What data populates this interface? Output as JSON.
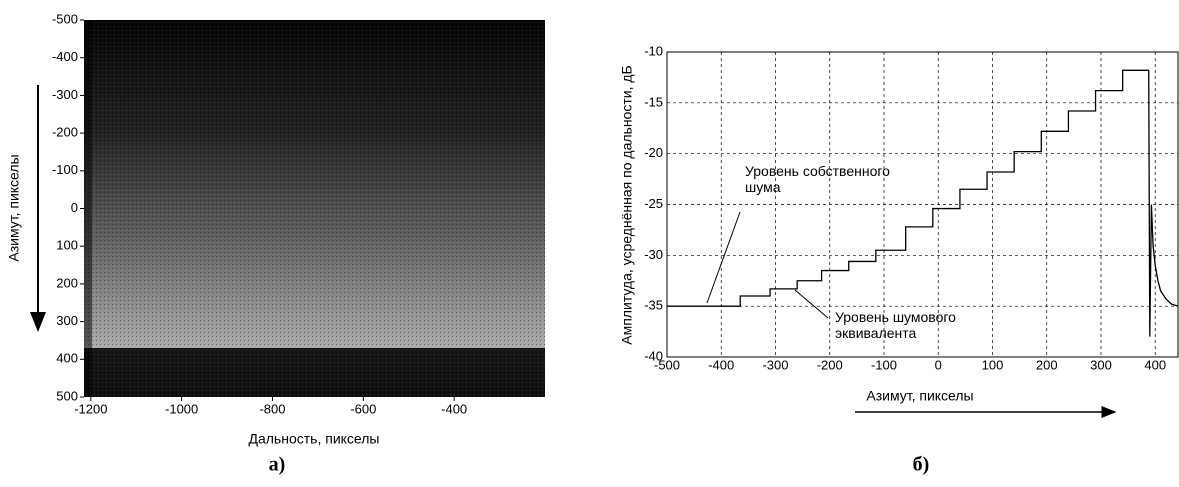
{
  "chart_data": [
    {
      "type": "heatmap",
      "xlabel": "Дальность, пикселы",
      "ylabel": "Азимут, пикселы",
      "caption": "а)",
      "xlim": [
        -1215,
        -200
      ],
      "ylim": [
        -500,
        500
      ],
      "y_inverted": true,
      "xticks": [
        -1200,
        -1000,
        -800,
        -600,
        -400
      ],
      "yticks": [
        -500,
        -400,
        -300,
        -200,
        -100,
        0,
        100,
        200,
        300,
        400,
        500
      ]
    },
    {
      "type": "line",
      "xlabel": "Азимут, пикселы",
      "ylabel": "Амплитуда, усреднённая по дальности, дБ",
      "caption": "б)",
      "xlim": [
        -500,
        442
      ],
      "ylim": [
        -40,
        -10
      ],
      "xticks": [
        -500,
        -400,
        -300,
        -200,
        -100,
        0,
        100,
        200,
        300,
        400
      ],
      "yticks": [
        -40,
        -35,
        -30,
        -25,
        -20,
        -15,
        -10
      ],
      "grid": true,
      "color": "#000000",
      "annotations": [
        "Уровень собственного шума",
        "Уровень шумового эквивалента"
      ],
      "x": [
        -500,
        -365,
        -365,
        -310,
        -310,
        -260,
        -260,
        -215,
        -215,
        -165,
        -165,
        -115,
        -115,
        -60,
        -60,
        -10,
        -10,
        40,
        40,
        90,
        90,
        140,
        140,
        190,
        190,
        240,
        240,
        290,
        290,
        340,
        340,
        388,
        390,
        393,
        396,
        400,
        405,
        410,
        420,
        430,
        442
      ],
      "values": [
        -35,
        -35,
        -34,
        -34,
        -33.3,
        -33.3,
        -32.5,
        -32.5,
        -31.5,
        -31.5,
        -30.6,
        -30.6,
        -29.5,
        -29.5,
        -27.2,
        -27.2,
        -25.4,
        -25.4,
        -23.5,
        -23.5,
        -21.8,
        -21.8,
        -19.8,
        -19.8,
        -17.8,
        -17.8,
        -15.8,
        -15.8,
        -13.8,
        -13.8,
        -11.8,
        -11.8,
        -38,
        -25,
        -29,
        -31,
        -32.5,
        -33.5,
        -34.3,
        -34.8,
        -35
      ]
    }
  ]
}
